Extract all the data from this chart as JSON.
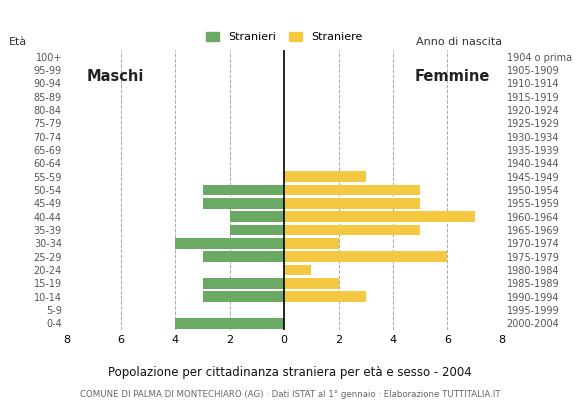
{
  "age_groups": [
    "100+",
    "95-99",
    "90-94",
    "85-89",
    "80-84",
    "75-79",
    "70-74",
    "65-69",
    "60-64",
    "55-59",
    "50-54",
    "45-49",
    "40-44",
    "35-39",
    "30-34",
    "25-29",
    "20-24",
    "15-19",
    "10-14",
    "5-9",
    "0-4"
  ],
  "birth_years": [
    "1904 o prima",
    "1905-1909",
    "1910-1914",
    "1915-1919",
    "1920-1924",
    "1925-1929",
    "1930-1934",
    "1935-1939",
    "1940-1944",
    "1945-1949",
    "1950-1954",
    "1955-1959",
    "1960-1964",
    "1965-1969",
    "1970-1974",
    "1975-1979",
    "1980-1984",
    "1985-1989",
    "1990-1994",
    "1995-1999",
    "2000-2004"
  ],
  "males": [
    0,
    0,
    0,
    0,
    0,
    0,
    0,
    0,
    0,
    0,
    3,
    3,
    2,
    2,
    4,
    3,
    0,
    3,
    3,
    0,
    4
  ],
  "females": [
    0,
    0,
    0,
    0,
    0,
    0,
    0,
    0,
    0,
    3,
    5,
    5,
    7,
    5,
    2,
    6,
    1,
    2,
    3,
    0,
    0
  ],
  "male_color": "#6aaa64",
  "female_color": "#f5c842",
  "background_color": "#ffffff",
  "grid_color": "#aaaaaa",
  "title": "Popolazione per cittadinanza straniera per età e sesso - 2004",
  "subtitle": "COMUNE DI PALMA DI MONTECHIARO (AG) · Dati ISTAT al 1° gennaio · Elaborazione TUTTITALIA.IT",
  "legend_male": "Stranieri",
  "legend_female": "Straniere",
  "label_left": "Maschi",
  "label_right": "Femmine",
  "ylabel_age": "Età",
  "ylabel_birth": "Anno di nascita",
  "xlim": 8
}
